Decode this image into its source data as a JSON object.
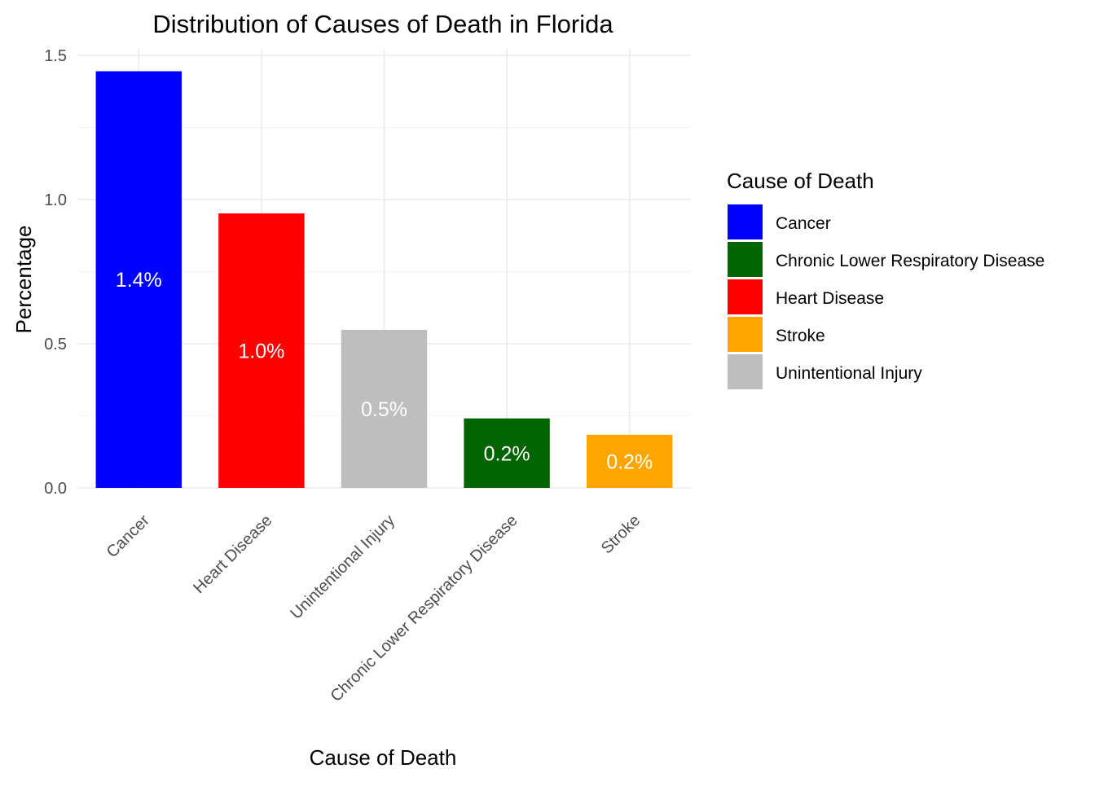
{
  "chart_data": {
    "type": "bar",
    "title": "Distribution of Causes of Death in Florida",
    "xlabel": "Cause of Death",
    "ylabel": "Percentage",
    "categories": [
      "Cancer",
      "Heart Disease",
      "Unintentional Injury",
      "Chronic Lower Respiratory Disease",
      "Stroke"
    ],
    "values": [
      1.445,
      0.952,
      0.548,
      0.241,
      0.184
    ],
    "value_labels": [
      "1.4%",
      "1.0%",
      "0.5%",
      "0.2%",
      "0.2%"
    ],
    "bar_colors": [
      "#0000ff",
      "#ff0000",
      "#bebebe",
      "#006400",
      "#ffa500"
    ],
    "ylim": [
      0,
      1.5
    ],
    "yticks": [
      0.0,
      0.5,
      1.0,
      1.5
    ],
    "ytick_labels": [
      "0.0",
      "0.5",
      "1.0",
      "1.5"
    ],
    "grid": true,
    "legend": {
      "title": "Cause of Death",
      "position": "right",
      "entries": [
        {
          "label": "Cancer",
          "color": "#0000ff"
        },
        {
          "label": "Chronic Lower Respiratory Disease",
          "color": "#006400"
        },
        {
          "label": "Heart Disease",
          "color": "#ff0000"
        },
        {
          "label": "Stroke",
          "color": "#ffa500"
        },
        {
          "label": "Unintentional Injury",
          "color": "#bebebe"
        }
      ]
    }
  }
}
